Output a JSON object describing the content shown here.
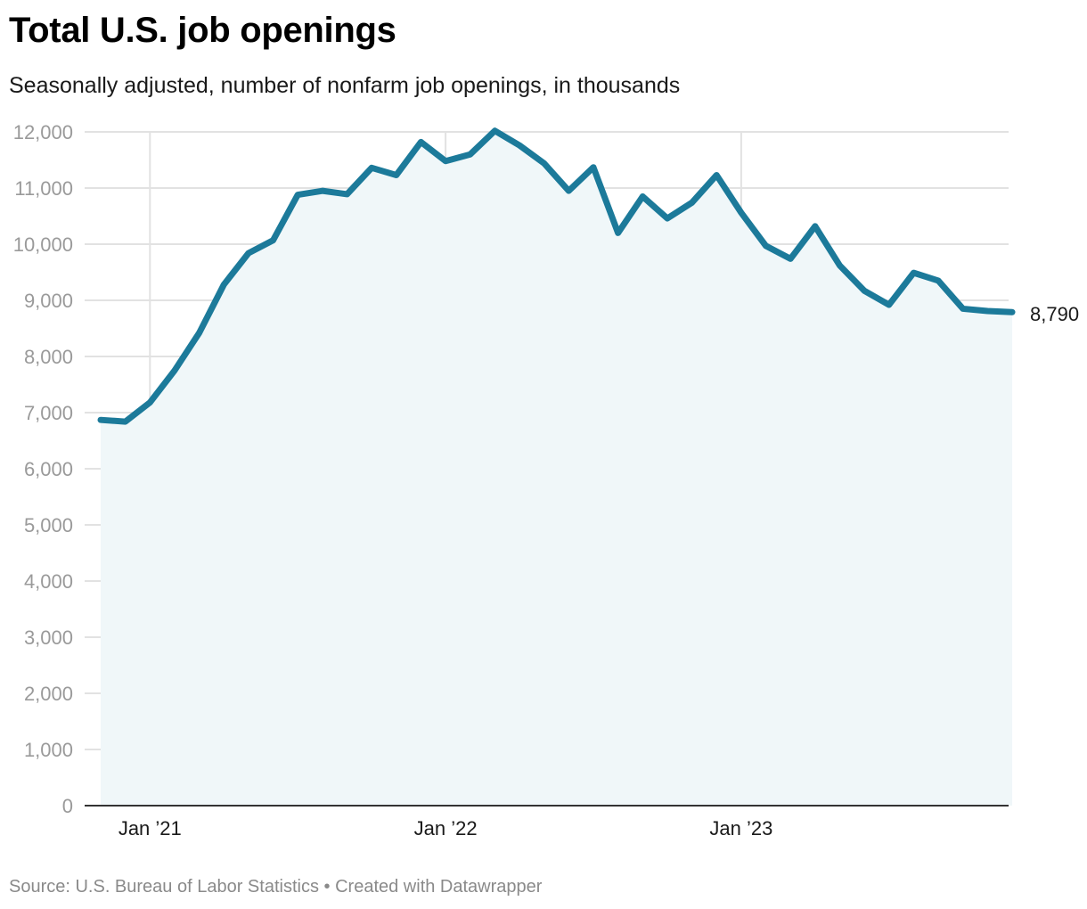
{
  "title": "Total U.S. job openings",
  "subtitle": "Seasonally adjusted, number of nonfarm job openings, in thousands",
  "footer": {
    "source": "Source: U.S. Bureau of Labor Statistics",
    "separator": "•",
    "credit": "Created with Datawrapper"
  },
  "colors": {
    "line": "#1c7a9a",
    "area": "#f0f7f9",
    "grid": "#e2e2e2",
    "axis": "#333333",
    "tick_text": "#9a9a9a",
    "label_text": "#1a1a1a"
  },
  "chart_data": {
    "type": "area",
    "title": "Total U.S. job openings",
    "subtitle": "Seasonally adjusted, number of nonfarm job openings, in thousands",
    "xlabel": "",
    "ylabel": "",
    "ylim": [
      0,
      12000
    ],
    "yticks": [
      0,
      1000,
      2000,
      3000,
      4000,
      5000,
      6000,
      7000,
      8000,
      9000,
      10000,
      11000,
      12000
    ],
    "ytick_labels": [
      "0",
      "1,000",
      "2,000",
      "3,000",
      "4,000",
      "5,000",
      "6,000",
      "7,000",
      "8,000",
      "9,000",
      "10,000",
      "11,000",
      "12,000"
    ],
    "xticks": [
      {
        "date": "2021-01",
        "label": "Jan ’21"
      },
      {
        "date": "2022-01",
        "label": "Jan ’22"
      },
      {
        "date": "2023-01",
        "label": "Jan ’23"
      }
    ],
    "grid": true,
    "legend": "none",
    "x": [
      "2020-11",
      "2020-12",
      "2021-01",
      "2021-02",
      "2021-03",
      "2021-04",
      "2021-05",
      "2021-06",
      "2021-07",
      "2021-08",
      "2021-09",
      "2021-10",
      "2021-11",
      "2021-12",
      "2022-01",
      "2022-02",
      "2022-03",
      "2022-04",
      "2022-05",
      "2022-06",
      "2022-07",
      "2022-08",
      "2022-09",
      "2022-10",
      "2022-11",
      "2022-12",
      "2023-01",
      "2023-02",
      "2023-03",
      "2023-04",
      "2023-05",
      "2023-06",
      "2023-07",
      "2023-08",
      "2023-09",
      "2023-10",
      "2023-11",
      "2023-12"
    ],
    "series": [
      {
        "values": [
          6870,
          6840,
          7180,
          7750,
          8420,
          9280,
          9840,
          10070,
          10880,
          10950,
          10890,
          11360,
          11230,
          11820,
          11480,
          11600,
          12020,
          11760,
          11440,
          10950,
          11370,
          10200,
          10850,
          10460,
          10740,
          11230,
          10560,
          9970,
          9740,
          10320,
          9620,
          9170,
          8920,
          9490,
          9350,
          8850,
          8810,
          8790
        ]
      }
    ],
    "end_label": "8,790"
  }
}
